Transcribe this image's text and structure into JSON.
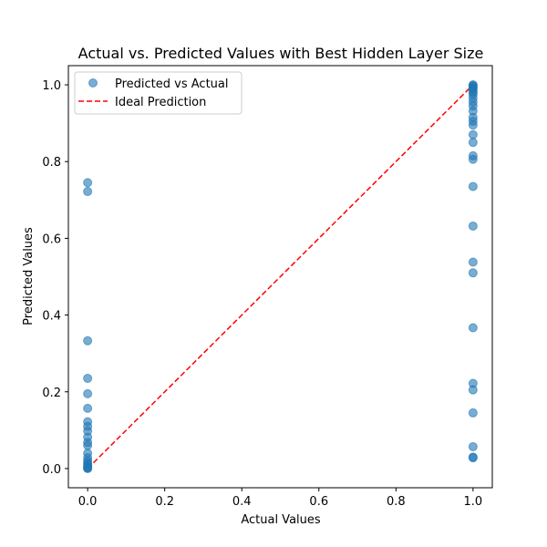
{
  "chart_data": {
    "type": "scatter",
    "title": "Actual vs. Predicted Values with Best Hidden Layer Size",
    "xlabel": "Actual Values",
    "ylabel": "Predicted Values",
    "xlim": [
      -0.05,
      1.05
    ],
    "ylim": [
      -0.05,
      1.05
    ],
    "xticks": [
      0.0,
      0.2,
      0.4,
      0.6,
      0.8,
      1.0
    ],
    "yticks": [
      0.0,
      0.2,
      0.4,
      0.6,
      0.8,
      1.0
    ],
    "xtick_labels": [
      "0.0",
      "0.2",
      "0.4",
      "0.6",
      "0.8",
      "1.0"
    ],
    "ytick_labels": [
      "0.0",
      "0.2",
      "0.4",
      "0.6",
      "0.8",
      "1.0"
    ],
    "grid": false,
    "legend_position": "top-left",
    "series": [
      {
        "name": "Predicted vs Actual",
        "kind": "scatter",
        "color": "#1f77b4",
        "points": [
          [
            0,
            0.745
          ],
          [
            0,
            0.722
          ],
          [
            0,
            0.333
          ],
          [
            0,
            0.235
          ],
          [
            0,
            0.195
          ],
          [
            0,
            0.157
          ],
          [
            0,
            0.122
          ],
          [
            0,
            0.11
          ],
          [
            0,
            0.098
          ],
          [
            0,
            0.082
          ],
          [
            0,
            0.068
          ],
          [
            0,
            0.06
          ],
          [
            0,
            0.04
          ],
          [
            0,
            0.028
          ],
          [
            0,
            0.02
          ],
          [
            0,
            0.015
          ],
          [
            0,
            0.01
          ],
          [
            0,
            0.006
          ],
          [
            0,
            0.003
          ],
          [
            0,
            0.001
          ],
          [
            0,
            0.0
          ],
          [
            1,
            1.0
          ],
          [
            1,
            0.998
          ],
          [
            1,
            0.996
          ],
          [
            1,
            0.993
          ],
          [
            1,
            0.99
          ],
          [
            1,
            0.985
          ],
          [
            1,
            0.98
          ],
          [
            1,
            0.975
          ],
          [
            1,
            0.965
          ],
          [
            1,
            0.955
          ],
          [
            1,
            0.945
          ],
          [
            1,
            0.932
          ],
          [
            1,
            0.915
          ],
          [
            1,
            0.905
          ],
          [
            1,
            0.895
          ],
          [
            1,
            0.87
          ],
          [
            1,
            0.85
          ],
          [
            1,
            0.815
          ],
          [
            1,
            0.806
          ],
          [
            1,
            0.735
          ],
          [
            1,
            0.632
          ],
          [
            1,
            0.538
          ],
          [
            1,
            0.51
          ],
          [
            1,
            0.367
          ],
          [
            1,
            0.222
          ],
          [
            1,
            0.205
          ],
          [
            1,
            0.145
          ],
          [
            1,
            0.057
          ],
          [
            1,
            0.03
          ],
          [
            1,
            0.028
          ]
        ]
      },
      {
        "name": "Ideal Prediction",
        "kind": "line",
        "color": "#ff0000",
        "dash": "dashed",
        "points": [
          [
            0,
            0
          ],
          [
            1,
            1
          ]
        ]
      }
    ]
  }
}
